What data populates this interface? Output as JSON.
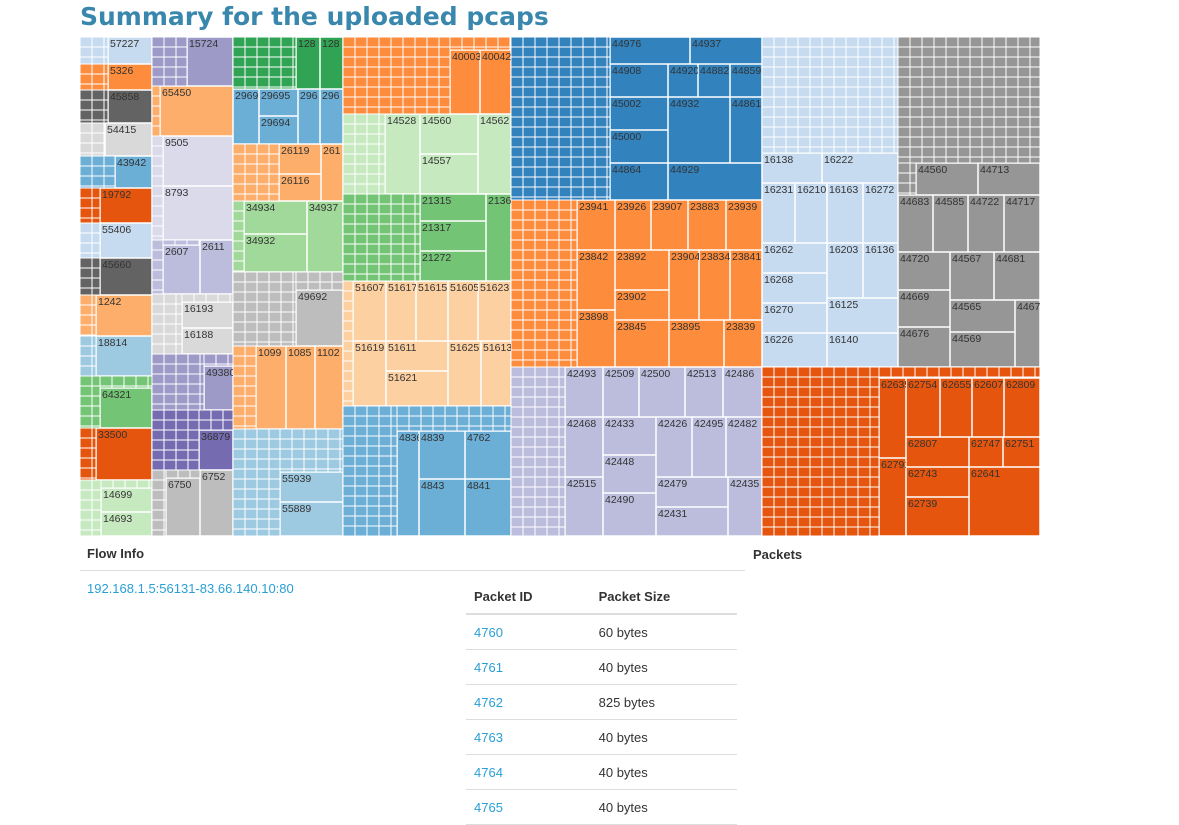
{
  "title": "Summary for the uploaded pcaps",
  "treemap": {
    "groups": [
      {
        "color": "#3182bd",
        "cells": [
          "44976",
          "44937",
          "44908",
          "44920",
          "44882",
          "44859",
          "45002",
          "45000",
          "44932",
          "44861",
          "44864",
          "44929"
        ]
      },
      {
        "color": "#fd8d3c",
        "cells": [
          "23941",
          "23926",
          "23907",
          "23883",
          "23939",
          "23842",
          "23892",
          "23904",
          "23834",
          "23841",
          "23902",
          "23898",
          "23845",
          "23895",
          "23839"
        ]
      },
      {
        "color": "#bcbddc",
        "cells": [
          "42493",
          "42509",
          "42500",
          "42513",
          "42486",
          "42468",
          "42433",
          "42426",
          "42495",
          "42482",
          "42448",
          "42515",
          "42479",
          "42435",
          "42490",
          "42431"
        ]
      },
      {
        "color": "#c6dbef",
        "cells": [
          "16138",
          "16222",
          "16231",
          "16210",
          "16163",
          "16272",
          "16262",
          "16203",
          "16136",
          "16268",
          "16270",
          "16125",
          "16226",
          "16140"
        ]
      },
      {
        "color": "#969696",
        "cells": [
          "44560",
          "44713",
          "44683",
          "44585",
          "44722",
          "44717",
          "44720",
          "44567",
          "44681",
          "44669",
          "44565",
          "44676",
          "44569",
          "44671"
        ]
      },
      {
        "color": "#e6550d",
        "cells": [
          "62754",
          "62655",
          "62607",
          "62809",
          "62635",
          "62807",
          "62747",
          "62751",
          "62743",
          "62739",
          "62641",
          "62791"
        ]
      },
      {
        "color": "#fd8d3c",
        "cells": [
          "40003",
          "40042"
        ]
      },
      {
        "color": "#c7e9c0",
        "cells": [
          "14528",
          "14560",
          "14562",
          "14557"
        ]
      },
      {
        "color": "#74c476",
        "cells": [
          "21315",
          "21361",
          "21317",
          "21272"
        ]
      },
      {
        "color": "#fdd0a2",
        "cells": [
          "51607",
          "51617",
          "51615",
          "51605",
          "51623",
          "51619",
          "51611",
          "51625",
          "51613",
          "51621"
        ]
      },
      {
        "color": "#6baed6",
        "cells": [
          "4836",
          "4839",
          "4762",
          "4843",
          "4841"
        ]
      },
      {
        "color": "#31a354",
        "cells": [
          "128",
          "128"
        ]
      },
      {
        "color": "#6baed6",
        "cells": [
          "2969",
          "29695",
          "296",
          "296",
          "29694"
        ]
      },
      {
        "color": "#fdae6b",
        "cells": [
          "26119",
          "261",
          "26116"
        ]
      },
      {
        "color": "#a1d99b",
        "cells": [
          "34934",
          "34937",
          "34932"
        ]
      },
      {
        "color": "#bdbdbd",
        "cells": [
          "49692"
        ]
      },
      {
        "color": "#fdae6b",
        "cells": [
          "1099",
          "1085",
          "1102"
        ]
      },
      {
        "color": "#9ecae1",
        "cells": [
          "55939",
          "55889"
        ]
      },
      {
        "color": "#9e9ac8",
        "cells": [
          "15724"
        ]
      },
      {
        "color": "#fdae6b",
        "cells": [
          "65450"
        ]
      },
      {
        "color": "#dadaeb",
        "cells": [
          "9505",
          "8793"
        ]
      },
      {
        "color": "#bcbddc",
        "cells": [
          "2607",
          "2611"
        ]
      },
      {
        "color": "#d9d9d9",
        "cells": [
          "16193",
          "16188"
        ]
      },
      {
        "color": "#9e9ac8",
        "cells": [
          "49380"
        ]
      },
      {
        "color": "#756bb1",
        "cells": [
          "36879"
        ]
      },
      {
        "color": "#bdbdbd",
        "cells": [
          "6750",
          "6752"
        ]
      },
      {
        "color": "#c6dbef",
        "cells": [
          "57227"
        ]
      },
      {
        "color": "#fd8d3c",
        "cells": [
          "5326"
        ]
      },
      {
        "color": "#636363",
        "cells": [
          "45858"
        ]
      },
      {
        "color": "#d9d9d9",
        "cells": [
          "54415"
        ]
      },
      {
        "color": "#6baed6",
        "cells": [
          "43942"
        ]
      },
      {
        "color": "#e6550d",
        "cells": [
          "19792"
        ]
      },
      {
        "color": "#c6dbef",
        "cells": [
          "55406"
        ]
      },
      {
        "color": "#636363",
        "cells": [
          "45660"
        ]
      },
      {
        "color": "#fdae6b",
        "cells": [
          "1242"
        ]
      },
      {
        "color": "#9ecae1",
        "cells": [
          "18814"
        ]
      },
      {
        "color": "#74c476",
        "cells": [
          "64321"
        ]
      },
      {
        "color": "#e6550d",
        "cells": [
          "33500"
        ]
      },
      {
        "color": "#c7e9c0",
        "cells": [
          "14699",
          "14693"
        ]
      }
    ]
  },
  "flow_info": {
    "heading": "Flow Info",
    "flow": "192.168.1.5:56131-83.66.140.10:80"
  },
  "packets": {
    "heading": "Packets",
    "columns": [
      "Packet ID",
      "Packet Size"
    ],
    "rows": [
      [
        "4760",
        "60 bytes"
      ],
      [
        "4761",
        "40 bytes"
      ],
      [
        "4762",
        "825 bytes"
      ],
      [
        "4763",
        "40 bytes"
      ],
      [
        "4764",
        "40 bytes"
      ],
      [
        "4765",
        "40 bytes"
      ]
    ]
  }
}
